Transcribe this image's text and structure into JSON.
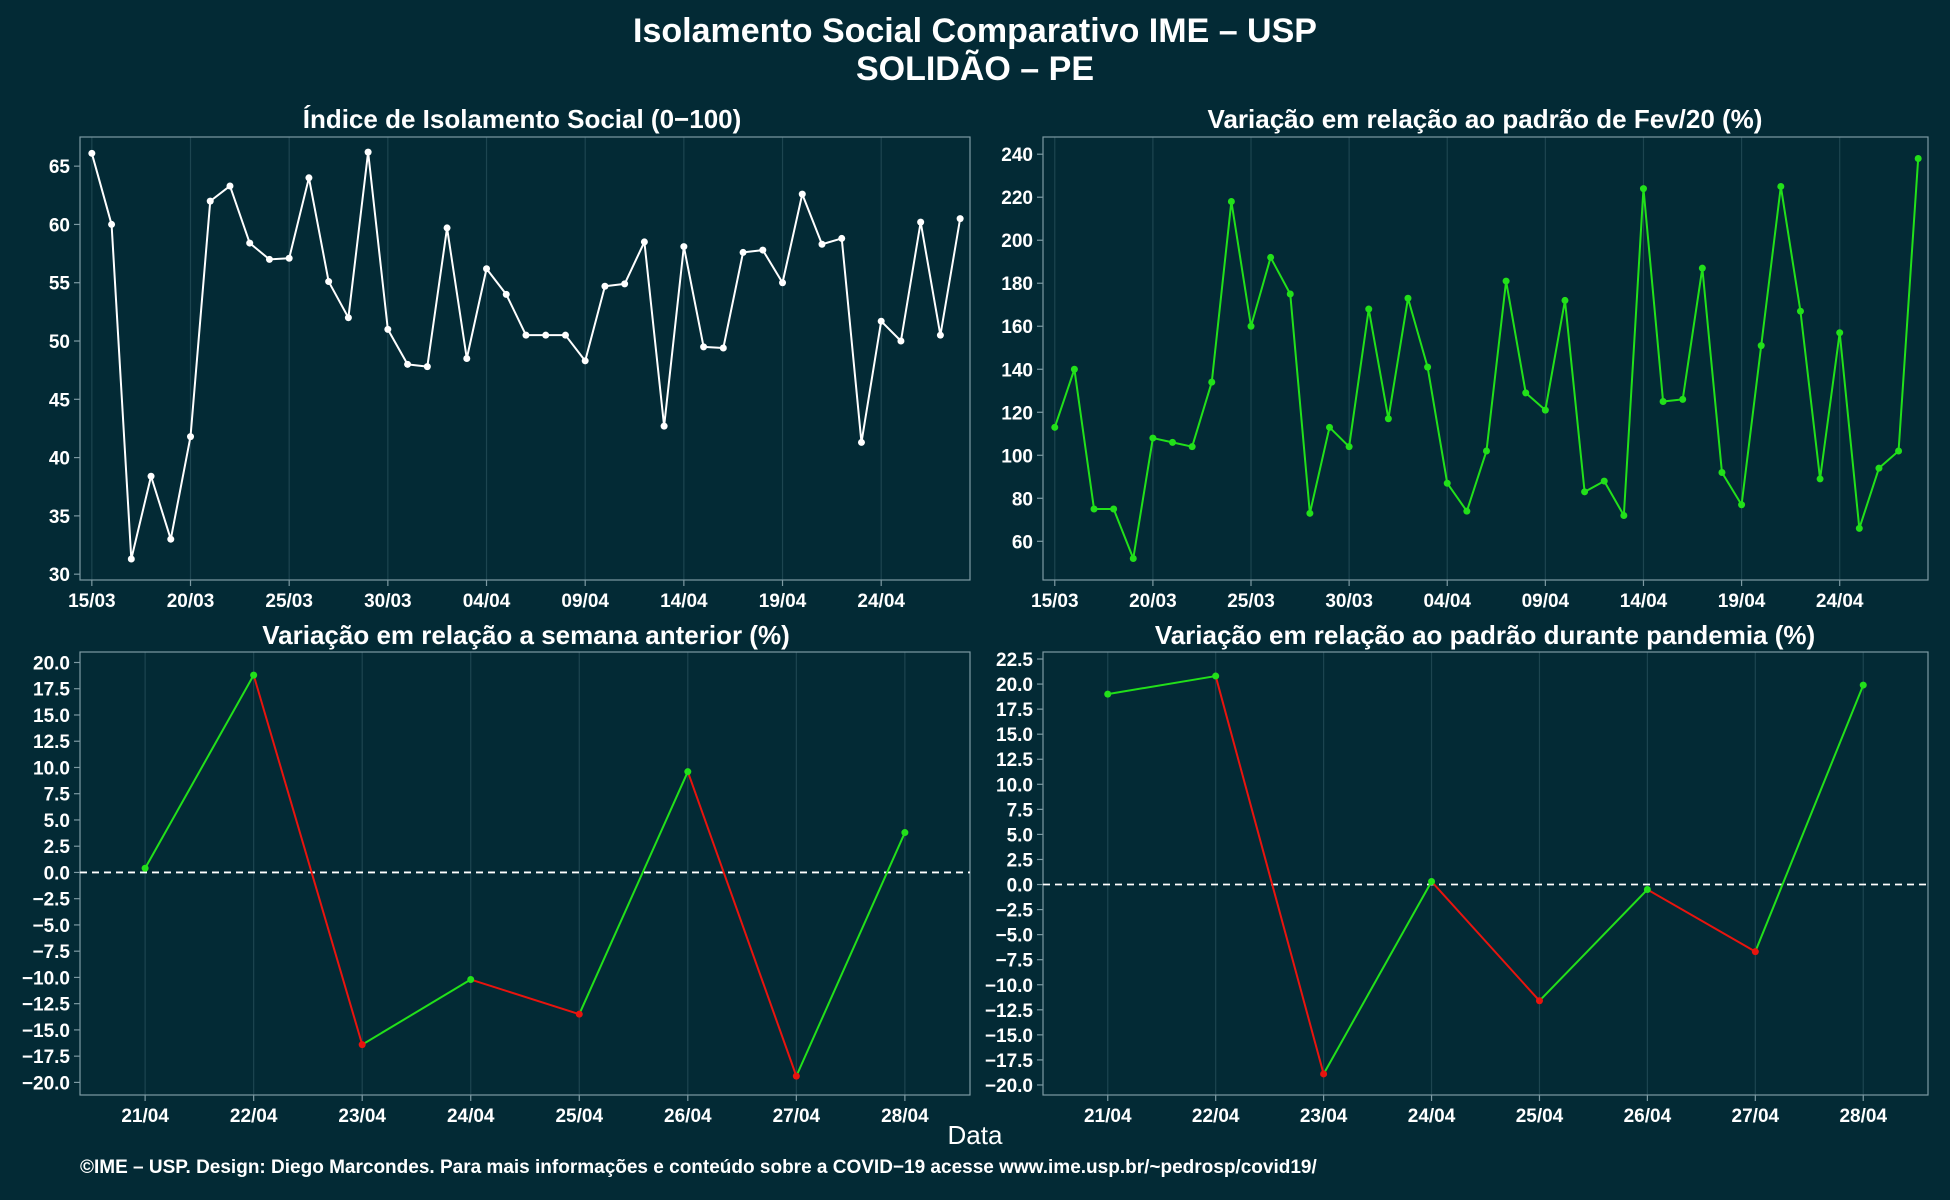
{
  "title": "Isolamento Social Comparativo IME – USP",
  "subtitle": "SOLIDÃO – PE",
  "xlabel": "Data",
  "footer": "©IME – USP. Design: Diego Marcondes. Para mais informações e conteúdo sobre a COVID−19 acesse www.ime.usp.br/~pedrosp/covid19/",
  "colors": {
    "background": "#032a35",
    "white": "#ffffff",
    "green": "#22e01a",
    "red": "#e8140e"
  },
  "chart_data": [
    {
      "type": "line",
      "title": "Índice de Isolamento Social (0−100)",
      "x_tick_labels": [
        "15/03",
        "20/03",
        "25/03",
        "30/03",
        "04/04",
        "09/04",
        "14/04",
        "19/04",
        "24/04"
      ],
      "y_ticks": [
        30,
        35,
        40,
        45,
        50,
        55,
        60,
        65
      ],
      "ylim": [
        29.5,
        67.5
      ],
      "xlim": [
        -0.6,
        44.5
      ],
      "line_color": "white",
      "values": [
        66.1,
        60.0,
        31.3,
        38.4,
        33.0,
        41.8,
        62.0,
        63.3,
        58.4,
        57.0,
        57.1,
        64.0,
        55.1,
        52.0,
        66.2,
        51.0,
        48.0,
        47.8,
        59.7,
        48.5,
        56.2,
        54.0,
        50.5,
        50.5,
        50.5,
        48.3,
        54.7,
        54.9,
        58.5,
        42.7,
        58.1,
        49.5,
        49.4,
        57.6,
        57.8,
        55.0,
        62.6,
        58.3,
        58.8,
        41.3,
        51.7,
        50.0,
        60.2,
        50.5,
        60.5
      ]
    },
    {
      "type": "line",
      "title": "Variação em relação ao padrão de Fev/20 (%)",
      "x_tick_labels": [
        "15/03",
        "20/03",
        "25/03",
        "30/03",
        "04/04",
        "09/04",
        "14/04",
        "19/04",
        "24/04"
      ],
      "y_ticks": [
        60,
        80,
        100,
        120,
        140,
        160,
        180,
        200,
        220,
        240
      ],
      "ylim": [
        42,
        248
      ],
      "xlim": [
        -0.6,
        44.5
      ],
      "line_color": "green",
      "values": [
        113,
        140,
        75,
        75,
        52,
        108,
        106,
        104,
        134,
        218,
        160,
        192,
        175,
        73,
        113,
        104,
        168,
        117,
        173,
        141,
        87,
        74,
        102,
        181,
        129,
        121,
        172,
        83,
        88,
        72,
        224,
        125,
        126,
        187,
        92,
        77,
        151,
        225,
        167,
        89,
        157,
        66,
        94,
        102,
        238
      ]
    },
    {
      "type": "line",
      "title": "Variação em relação a semana anterior (%)",
      "categories": [
        "21/04",
        "22/04",
        "23/04",
        "24/04",
        "25/04",
        "26/04",
        "27/04",
        "28/04"
      ],
      "y_ticks": [
        -20.0,
        -17.5,
        -15.0,
        -12.5,
        -10.0,
        -7.5,
        -5.0,
        -2.5,
        0.0,
        2.5,
        5.0,
        7.5,
        10.0,
        12.5,
        15.0,
        17.5,
        20.0
      ],
      "ylim": [
        -21.2,
        21.0
      ],
      "reference_line": 0,
      "segment_colors": "green when value rises, red when value falls",
      "values": [
        0.4,
        18.8,
        -16.4,
        -10.2,
        -13.5,
        9.6,
        -19.4,
        3.8
      ]
    },
    {
      "type": "line",
      "title": "Variação em relação ao padrão durante pandemia (%)",
      "categories": [
        "21/04",
        "22/04",
        "23/04",
        "24/04",
        "25/04",
        "26/04",
        "27/04",
        "28/04"
      ],
      "y_ticks": [
        -20.0,
        -17.5,
        -15.0,
        -12.5,
        -10.0,
        -7.5,
        -5.0,
        -2.5,
        0.0,
        2.5,
        5.0,
        7.5,
        10.0,
        12.5,
        15.0,
        17.5,
        20.0,
        22.5
      ],
      "ylim": [
        -21.0,
        23.2
      ],
      "reference_line": 0,
      "segment_colors": "green when value rises, red when value falls",
      "values": [
        19.0,
        20.8,
        -18.9,
        0.3,
        -11.6,
        -0.5,
        -6.7,
        19.9
      ]
    }
  ]
}
